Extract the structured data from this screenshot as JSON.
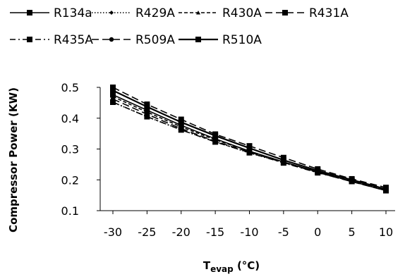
{
  "chart_data": {
    "type": "line",
    "xlabel": {
      "main": "T",
      "sub": "evap",
      "unit": " (°C)"
    },
    "ylabel": "Compressor Power (KW)",
    "x": [
      -30,
      -25,
      -20,
      -15,
      -10,
      -5,
      0,
      5,
      10
    ],
    "xlim": [
      -30,
      10
    ],
    "ylim": [
      0.1,
      0.5
    ],
    "yticks": [
      "0.1",
      "0.2",
      "0.3",
      "0.4",
      "0.5"
    ],
    "grid": false,
    "legend_position": "top",
    "series": [
      {
        "name": "R134a",
        "line": "solid",
        "marker": "square",
        "values": [
          0.476,
          0.426,
          0.377,
          0.333,
          0.293,
          0.258,
          0.226,
          0.195,
          0.165
        ]
      },
      {
        "name": "R429A",
        "line": "dotted",
        "marker": "diamond",
        "values": [
          0.452,
          0.405,
          0.362,
          0.324,
          0.287,
          0.256,
          0.225,
          0.195,
          0.166
        ]
      },
      {
        "name": "R430A",
        "line": "dashed",
        "marker": "triangle",
        "values": [
          0.47,
          0.42,
          0.372,
          0.33,
          0.293,
          0.258,
          0.226,
          0.196,
          0.167
        ]
      },
      {
        "name": "R431A",
        "line": "longdash",
        "marker": "square",
        "values": [
          0.5,
          0.445,
          0.396,
          0.348,
          0.31,
          0.272,
          0.235,
          0.203,
          0.175
        ]
      },
      {
        "name": "R435A",
        "line": "dashdot",
        "marker": "square",
        "values": [
          0.452,
          0.405,
          0.362,
          0.323,
          0.288,
          0.255,
          0.223,
          0.195,
          0.166
        ]
      },
      {
        "name": "R509A",
        "line": "longdash",
        "marker": "circle",
        "values": [
          0.462,
          0.413,
          0.366,
          0.325,
          0.29,
          0.256,
          0.224,
          0.194,
          0.165
        ]
      },
      {
        "name": "R510A",
        "line": "longsolid",
        "marker": "square",
        "values": [
          0.49,
          0.437,
          0.387,
          0.343,
          0.303,
          0.264,
          0.23,
          0.2,
          0.17
        ]
      }
    ]
  }
}
